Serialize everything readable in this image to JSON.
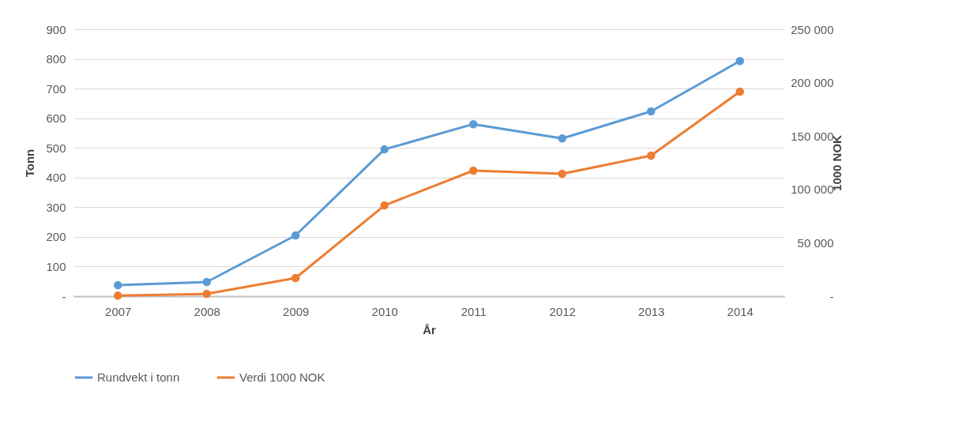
{
  "chart_data": {
    "type": "line",
    "xlabel": "År",
    "ylabel": "Tonn",
    "y2label": "1000 NOK",
    "categories": [
      "2007",
      "2008",
      "2009",
      "2010",
      "2011",
      "2012",
      "2013",
      "2014"
    ],
    "series": [
      {
        "name": "Rundvekt i tonn",
        "color": "#5b9bd5",
        "values": [
          37,
          48,
          205,
          495,
          580,
          532,
          623,
          793
        ]
      },
      {
        "name": "Verdi 1000 NOK",
        "color": "#ed7d31",
        "axis": "y2",
        "values": [
          500,
          2200,
          17000,
          85000,
          117600,
          114600,
          131600,
          191600
        ]
      }
    ],
    "ylim": [
      0,
      900
    ],
    "yticks": [
      {
        "value": 0,
        "label": "-"
      },
      100,
      200,
      300,
      400,
      500,
      600,
      700,
      800,
      900
    ],
    "y2lim": [
      0,
      250000
    ],
    "y2ticks": [
      {
        "value": 0,
        "label": "-"
      },
      {
        "value": 50000,
        "label": "50 000"
      },
      {
        "value": 100000,
        "label": "100 000"
      },
      {
        "value": 150000,
        "label": "150 000"
      },
      {
        "value": 200000,
        "label": "200 000"
      },
      {
        "value": 250000,
        "label": "250 000"
      }
    ],
    "grid": "y",
    "legend": "bottom",
    "marker": "circle",
    "line_style": "solid"
  }
}
